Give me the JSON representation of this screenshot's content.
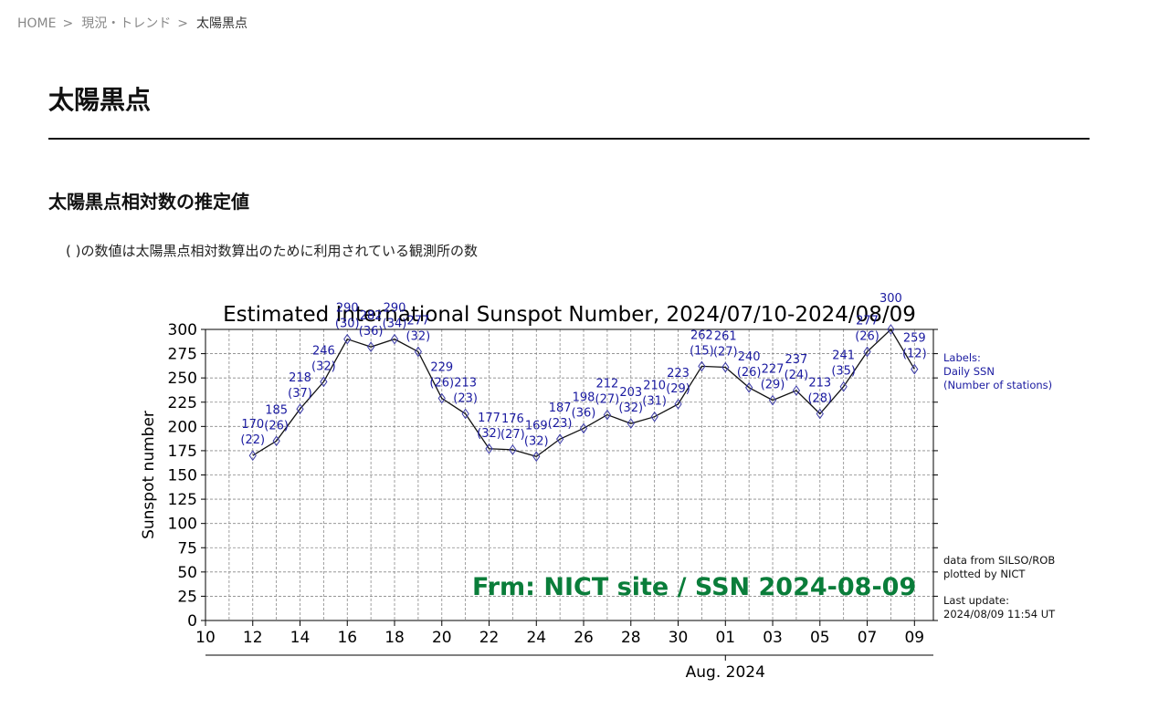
{
  "breadcrumb": {
    "items": [
      "HOME",
      "現況・トレンド"
    ],
    "separator": ">",
    "current": "太陽黒点"
  },
  "page_title": "太陽黒点",
  "section_title": "太陽黒点相対数の推定値",
  "note": "( )の数値は太陽黒点相対数算出のために利用されている観測所の数",
  "chart_data": {
    "type": "line",
    "title": "Estimated International Sunspot Number, 2024/07/10-2024/08/09",
    "ylabel": "Sunspot number",
    "xlabel": "Aug. 2024",
    "ylim": [
      0,
      300
    ],
    "yticks": [
      0,
      25,
      50,
      75,
      100,
      125,
      150,
      175,
      200,
      225,
      250,
      275,
      300
    ],
    "xtick_labels": [
      "10",
      "12",
      "14",
      "16",
      "18",
      "20",
      "22",
      "24",
      "26",
      "28",
      "30",
      "01",
      "03",
      "05",
      "07",
      "09"
    ],
    "grid": true,
    "series": [
      {
        "dates": [
          "2024-07-12",
          "2024-07-13",
          "2024-07-14",
          "2024-07-15",
          "2024-07-16",
          "2024-07-17",
          "2024-07-18",
          "2024-07-19",
          "2024-07-20",
          "2024-07-21",
          "2024-07-22",
          "2024-07-23",
          "2024-07-24",
          "2024-07-25",
          "2024-07-26",
          "2024-07-27",
          "2024-07-28",
          "2024-07-29",
          "2024-07-30",
          "2024-07-31",
          "2024-08-01",
          "2024-08-02",
          "2024-08-03",
          "2024-08-04",
          "2024-08-05",
          "2024-08-06",
          "2024-08-07",
          "2024-08-08",
          "2024-08-09"
        ],
        "values": [
          170,
          185,
          218,
          246,
          290,
          282,
          290,
          277,
          229,
          213,
          177,
          176,
          169,
          187,
          198,
          212,
          203,
          210,
          223,
          262,
          261,
          240,
          227,
          237,
          213,
          241,
          277,
          300,
          259
        ],
        "stations": [
          22,
          26,
          37,
          32,
          30,
          36,
          34,
          32,
          26,
          23,
          32,
          27,
          32,
          23,
          36,
          27,
          32,
          31,
          29,
          15,
          27,
          26,
          29,
          24,
          28,
          35,
          26,
          null,
          12
        ]
      }
    ],
    "legend": {
      "lines": [
        "Labels:",
        "Daily SSN",
        "(Number of stations)"
      ],
      "color": "#1a1aa0"
    },
    "footer_notes": [
      "data from SILSO/ROB",
      "plotted by NICT",
      "Last update:",
      "2024/08/09 11:54 UT"
    ],
    "watermark": "Frm: NICT site / SSN 2024-08-09",
    "colors": {
      "line": "#111111",
      "marker": "#3a3aa8",
      "label": "#1a1aa0",
      "watermark": "#0a7d3a"
    }
  }
}
